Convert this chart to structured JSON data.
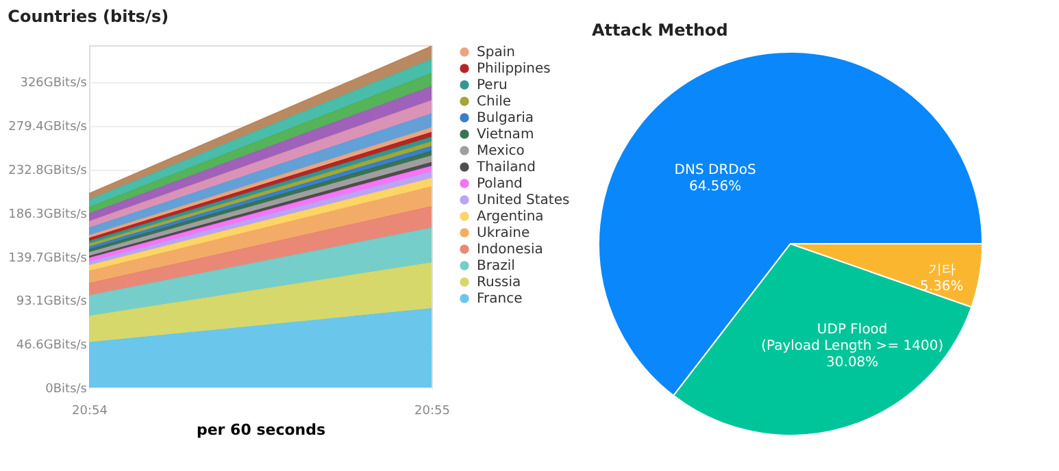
{
  "chart_data": [
    {
      "type": "area",
      "title": "Countries (bits/s)",
      "xlabel": "per 60 seconds",
      "stacked": true,
      "grid": "y",
      "legend": "right",
      "x": [
        20.9,
        20.9167
      ],
      "xlim": [
        20.9,
        20.9167
      ],
      "xticks": [
        {
          "value": 20.9,
          "label": "20:54"
        },
        {
          "value": 20.9167,
          "label": "20:55"
        }
      ],
      "ylim": [
        0,
        365
      ],
      "yticks": [
        {
          "value": 0,
          "label": "0Bits/s"
        },
        {
          "value": 46.6,
          "label": "46.6GBits/s"
        },
        {
          "value": 93.1,
          "label": "93.1GBits/s"
        },
        {
          "value": 139.7,
          "label": "139.7GBits/s"
        },
        {
          "value": 186.3,
          "label": "186.3GBits/s"
        },
        {
          "value": 232.8,
          "label": "232.8GBits/s"
        },
        {
          "value": 279.4,
          "label": "279.4GBits/s"
        },
        {
          "value": 326,
          "label": "326GBits/s"
        }
      ],
      "series": [
        {
          "name": "France",
          "color": "#62c3ea",
          "values": [
            48,
            84
          ]
        },
        {
          "name": "Russia",
          "color": "#d4d663",
          "values": [
            28,
            49
          ]
        },
        {
          "name": "Brazil",
          "color": "#6ecbc7",
          "values": [
            22,
            37
          ]
        },
        {
          "name": "Indonesia",
          "color": "#e8826f",
          "values": [
            13,
            23
          ]
        },
        {
          "name": "Ukraine",
          "color": "#f2a85f",
          "values": [
            13,
            21
          ]
        },
        {
          "name": "Argentina",
          "color": "#fcd35c",
          "values": [
            6,
            9
          ]
        },
        {
          "name": "United States",
          "color": "#b79ff5",
          "values": [
            4,
            7
          ]
        },
        {
          "name": "Poland",
          "color": "#f76bf7",
          "values": [
            4,
            6
          ]
        },
        {
          "name": "Thailand",
          "color": "#444444",
          "values": [
            2,
            4
          ]
        },
        {
          "name": "Mexico",
          "color": "#9a9a9a",
          "values": [
            4,
            7
          ]
        },
        {
          "name": "Vietnam",
          "color": "#2e6b4a",
          "values": [
            3,
            5
          ]
        },
        {
          "name": "Bulgaria",
          "color": "#2e78c7",
          "values": [
            3,
            5
          ]
        },
        {
          "name": "Chile",
          "color": "#9fa12b",
          "values": [
            3,
            5
          ]
        },
        {
          "name": "Peru",
          "color": "#2a8f8c",
          "values": [
            3,
            5
          ]
        },
        {
          "name": "Philippines",
          "color": "#b01a1a",
          "values": [
            3,
            5
          ]
        },
        {
          "name": "Spain",
          "color": "#e8a07a",
          "values": [
            3,
            5
          ]
        },
        {
          "color": "#5b9bd5",
          "values": [
            8,
            15
          ]
        },
        {
          "color": "#d98cb3",
          "values": [
            7,
            14
          ]
        },
        {
          "color": "#9b59b6",
          "values": [
            8,
            15
          ]
        },
        {
          "color": "#4caf50",
          "values": [
            7,
            14
          ]
        },
        {
          "color": "#3fb8a5",
          "values": [
            8,
            15
          ]
        },
        {
          "color": "#b5835a",
          "values": [
            7,
            14
          ]
        }
      ]
    },
    {
      "type": "pie",
      "title": "Attack Method",
      "categories": [
        "DNS DRDoS",
        "UDP Flood\n(Payload Length >= 1400)",
        "기타"
      ],
      "values": [
        64.56,
        30.08,
        5.36
      ],
      "colors": [
        "#0a87fb",
        "#00c49a",
        "#fbb630"
      ],
      "value_labels": [
        "64.56%",
        "30.08%",
        "5.36%"
      ]
    }
  ]
}
